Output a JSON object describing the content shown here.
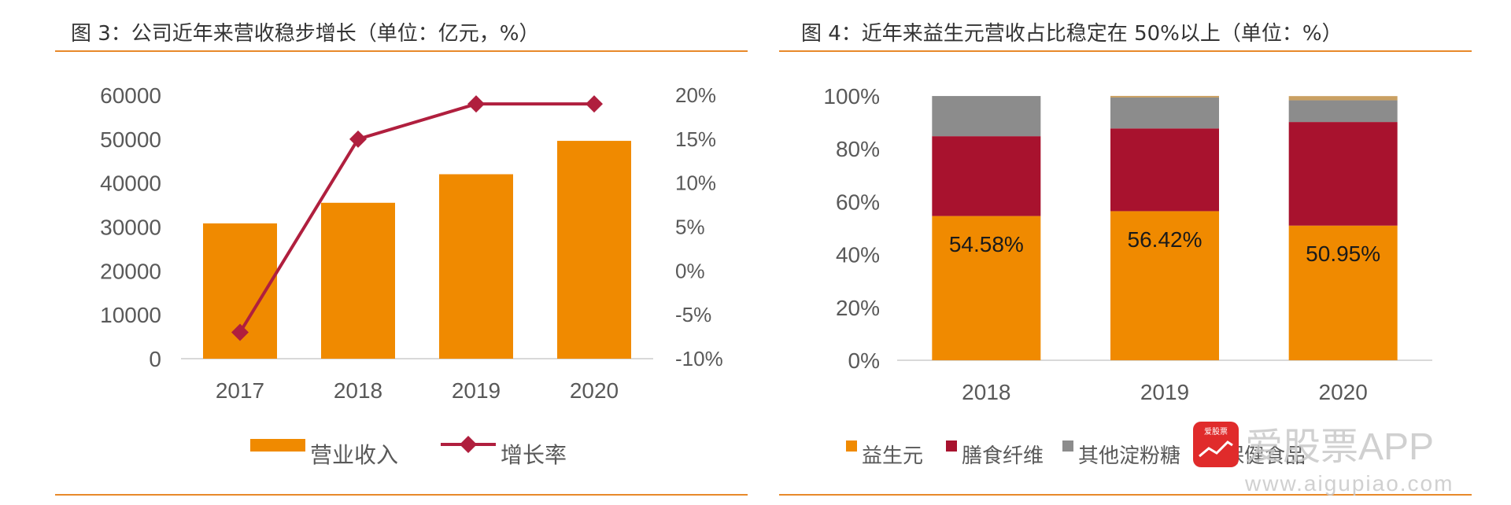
{
  "left": {
    "title": "图 3：公司近年来营收稳步增长（单位：亿元，%）",
    "chart_data": {
      "type": "bar+line",
      "categories": [
        "2017",
        "2018",
        "2019",
        "2020"
      ],
      "series": [
        {
          "name": "营业收入",
          "type": "bar",
          "axis": "left",
          "color": "#f08a00",
          "values": [
            30800,
            35500,
            42000,
            49600
          ]
        },
        {
          "name": "增长率",
          "type": "line",
          "axis": "right",
          "color": "#b01f3e",
          "values": [
            -7,
            15,
            19,
            19
          ]
        }
      ],
      "y_left": {
        "min": 0,
        "max": 60000,
        "ticks": [
          "0",
          "10000",
          "20000",
          "30000",
          "40000",
          "50000",
          "60000"
        ]
      },
      "y_right": {
        "min": -10,
        "max": 20,
        "ticks": [
          "-10%",
          "-5%",
          "0%",
          "5%",
          "10%",
          "15%",
          "20%"
        ]
      },
      "legend": [
        "营业收入",
        "增长率"
      ],
      "legend_position": "bottom",
      "grid": false
    }
  },
  "right": {
    "title": "图 4：近年来益生元营收占比稳定在 50%以上（单位：%）",
    "chart_data": {
      "type": "bar",
      "stacked": true,
      "categories": [
        "2018",
        "2019",
        "2020"
      ],
      "series": [
        {
          "name": "益生元",
          "color": "#f08a00",
          "values": [
            54.58,
            56.42,
            50.95
          ]
        },
        {
          "name": "膳食纤维",
          "color": "#a8122e",
          "values": [
            30.2,
            31.3,
            39.2
          ]
        },
        {
          "name": "其他淀粉糖",
          "color": "#8c8c8c",
          "values": [
            15.2,
            11.7,
            8.2
          ]
        },
        {
          "name": "保健食品",
          "color": "#c9a062",
          "values": [
            0,
            0.6,
            1.6
          ]
        }
      ],
      "data_labels": [
        "54.58%",
        "56.42%",
        "50.95%"
      ],
      "y": {
        "min": 0,
        "max": 100,
        "ticks": [
          "0%",
          "20%",
          "40%",
          "60%",
          "80%",
          "100%"
        ]
      },
      "legend": [
        "益生元",
        "膳食纤维",
        "其他淀粉糖",
        "保健食品"
      ],
      "legend_position": "bottom",
      "grid": false
    }
  },
  "watermark": {
    "brand": "爱股票APP",
    "url": "www.aigupiao.com",
    "logo_text": "爱股票"
  }
}
